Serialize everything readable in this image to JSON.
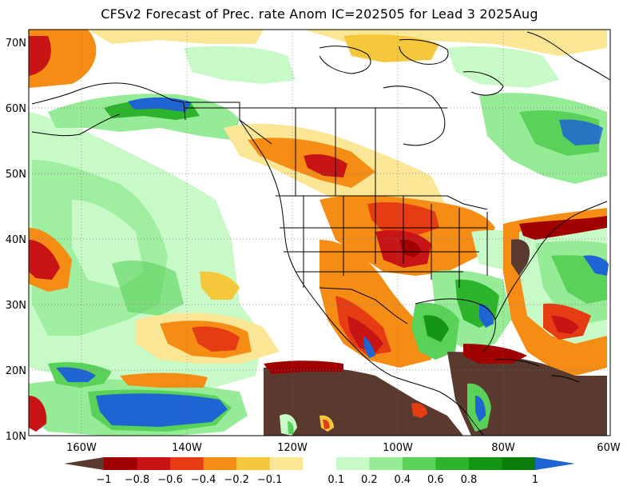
{
  "title": "CFSv2 Forecast of Prec. rate Anom IC=202505 for Lead 3 2025Aug",
  "lat_labels": [
    "70N",
    "60N",
    "50N",
    "40N",
    "30N",
    "20N",
    "10N"
  ],
  "lon_labels": [
    "160W",
    "140W",
    "120W",
    "100W",
    "80W",
    "60W"
  ],
  "colorbar": {
    "colors": [
      "#5a3a2e",
      "#a00000",
      "#c81414",
      "#e63c14",
      "#f58c14",
      "#f5c83c",
      "#fbe696",
      "#ffffff",
      "#c8fac8",
      "#96eb96",
      "#5ad25a",
      "#2db42d",
      "#149614",
      "#0a7d0a",
      "#1e64d2"
    ],
    "labels": [
      "−1",
      "−0.8",
      "−0.6",
      "−0.4",
      "−0.2",
      "−0.1",
      "0.1",
      "0.2",
      "0.4",
      "0.6",
      "0.8",
      "1"
    ]
  }
}
